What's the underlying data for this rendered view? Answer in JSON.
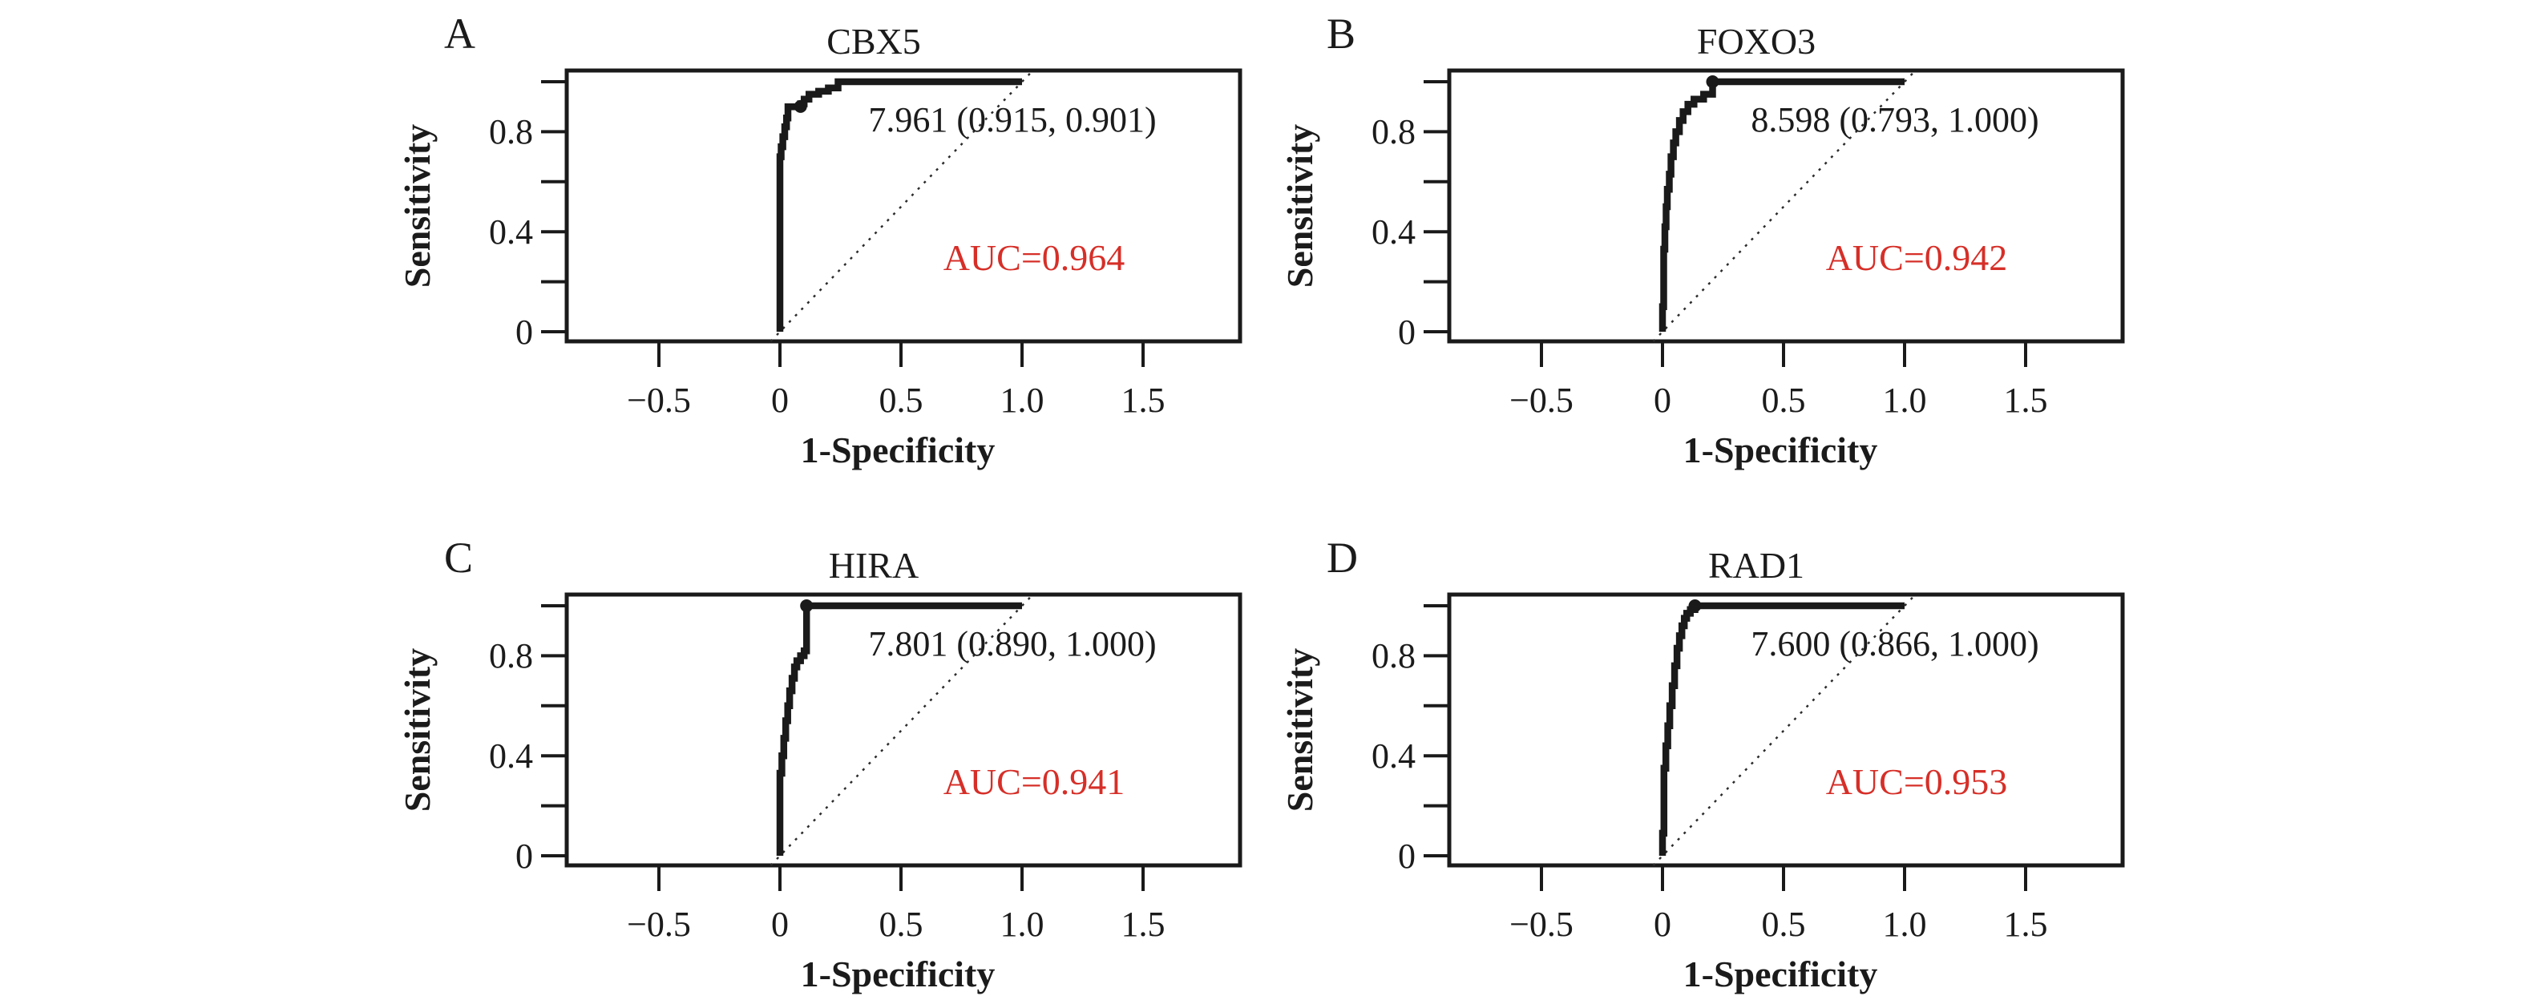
{
  "figure": {
    "background": "#ffffff",
    "ink_color": "#1a1a1a",
    "accent_red": "#d62f28"
  },
  "axes": {
    "x_label": "1-Specificity",
    "y_label": "Sensitivity",
    "x_tick_labels": [
      "−0.5",
      "0",
      "0.5",
      "1.0",
      "1.5"
    ],
    "y_tick_labels": [
      "0",
      "0.4",
      "0.8"
    ]
  },
  "panels": [
    {
      "letter": "A",
      "title": "CBX5",
      "threshold_label": "7.961 (0.915, 0.901)",
      "auc_label": "AUC=0.964"
    },
    {
      "letter": "B",
      "title": "FOXO3",
      "threshold_label": "8.598 (0.793, 1.000)",
      "auc_label": "AUC=0.942"
    },
    {
      "letter": "C",
      "title": "HIRA",
      "threshold_label": "7.801 (0.890, 1.000)",
      "auc_label": "AUC=0.941"
    },
    {
      "letter": "D",
      "title": "RAD1",
      "threshold_label": "7.600 (0.866, 1.000)",
      "auc_label": "AUC=0.953"
    }
  ],
  "chart_data": {
    "type": "line",
    "subtype": "roc-curve",
    "title": "ROC curves for candidate genes",
    "xlabel": "1-Specificity",
    "ylabel": "Sensitivity",
    "x_ticks": [
      -0.5,
      0,
      0.5,
      1.0,
      1.5
    ],
    "y_ticks_labeled": [
      0,
      0.4,
      0.8
    ],
    "y_ticks_minor": [
      0.2,
      0.6,
      1.0
    ],
    "xlim": [
      -0.88,
      1.9
    ],
    "ylim": [
      -0.04,
      1.045
    ],
    "grid": false,
    "legend": "none",
    "reference_line": {
      "from": [
        0,
        0
      ],
      "to": [
        1,
        1
      ],
      "style": "dotted",
      "extended_to_plot_edges": true
    },
    "panels": [
      {
        "label": "A",
        "gene": "CBX5",
        "auc": 0.964,
        "best_threshold": 7.961,
        "specificity": 0.915,
        "sensitivity": 0.901,
        "roc_curve": [
          [
            0,
            0
          ],
          [
            0,
            0.7
          ],
          [
            0.005,
            0.7
          ],
          [
            0.005,
            0.74
          ],
          [
            0.012,
            0.74
          ],
          [
            0.012,
            0.78
          ],
          [
            0.02,
            0.78
          ],
          [
            0.02,
            0.82
          ],
          [
            0.027,
            0.82
          ],
          [
            0.027,
            0.855
          ],
          [
            0.033,
            0.855
          ],
          [
            0.033,
            0.9
          ],
          [
            0.085,
            0.9
          ],
          [
            0.085,
            0.912
          ],
          [
            0.1,
            0.912
          ],
          [
            0.1,
            0.93
          ],
          [
            0.12,
            0.93
          ],
          [
            0.12,
            0.95
          ],
          [
            0.16,
            0.95
          ],
          [
            0.16,
            0.962
          ],
          [
            0.2,
            0.962
          ],
          [
            0.2,
            0.975
          ],
          [
            0.24,
            0.975
          ],
          [
            0.24,
            1.0
          ],
          [
            1.0,
            1.0
          ]
        ]
      },
      {
        "label": "B",
        "gene": "FOXO3",
        "auc": 0.942,
        "best_threshold": 8.598,
        "specificity": 0.793,
        "sensitivity": 1.0,
        "roc_curve": [
          [
            0,
            0
          ],
          [
            0,
            0.1
          ],
          [
            0.005,
            0.1
          ],
          [
            0.005,
            0.33
          ],
          [
            0.01,
            0.33
          ],
          [
            0.01,
            0.42
          ],
          [
            0.015,
            0.42
          ],
          [
            0.015,
            0.5
          ],
          [
            0.02,
            0.5
          ],
          [
            0.02,
            0.57
          ],
          [
            0.028,
            0.57
          ],
          [
            0.028,
            0.63
          ],
          [
            0.035,
            0.63
          ],
          [
            0.035,
            0.7
          ],
          [
            0.045,
            0.7
          ],
          [
            0.045,
            0.755
          ],
          [
            0.055,
            0.755
          ],
          [
            0.055,
            0.8
          ],
          [
            0.07,
            0.8
          ],
          [
            0.07,
            0.845
          ],
          [
            0.085,
            0.845
          ],
          [
            0.085,
            0.88
          ],
          [
            0.105,
            0.88
          ],
          [
            0.105,
            0.91
          ],
          [
            0.13,
            0.91
          ],
          [
            0.13,
            0.93
          ],
          [
            0.17,
            0.93
          ],
          [
            0.17,
            0.95
          ],
          [
            0.207,
            0.95
          ],
          [
            0.207,
            1.0
          ],
          [
            1.0,
            1.0
          ]
        ]
      },
      {
        "label": "C",
        "gene": "HIRA",
        "auc": 0.941,
        "best_threshold": 7.801,
        "specificity": 0.89,
        "sensitivity": 1.0,
        "roc_curve": [
          [
            0,
            0
          ],
          [
            0,
            0.33
          ],
          [
            0.008,
            0.33
          ],
          [
            0.008,
            0.4
          ],
          [
            0.016,
            0.4
          ],
          [
            0.016,
            0.47
          ],
          [
            0.024,
            0.47
          ],
          [
            0.024,
            0.54
          ],
          [
            0.032,
            0.54
          ],
          [
            0.032,
            0.6
          ],
          [
            0.04,
            0.6
          ],
          [
            0.04,
            0.66
          ],
          [
            0.05,
            0.66
          ],
          [
            0.05,
            0.71
          ],
          [
            0.06,
            0.71
          ],
          [
            0.06,
            0.755
          ],
          [
            0.07,
            0.755
          ],
          [
            0.07,
            0.78
          ],
          [
            0.085,
            0.78
          ],
          [
            0.085,
            0.8
          ],
          [
            0.1,
            0.8
          ],
          [
            0.1,
            0.82
          ],
          [
            0.11,
            0.82
          ],
          [
            0.11,
            1.0
          ],
          [
            1.0,
            1.0
          ]
        ]
      },
      {
        "label": "D",
        "gene": "RAD1",
        "auc": 0.953,
        "best_threshold": 7.6,
        "specificity": 0.866,
        "sensitivity": 1.0,
        "roc_curve": [
          [
            0,
            0
          ],
          [
            0,
            0.09
          ],
          [
            0.006,
            0.09
          ],
          [
            0.006,
            0.35
          ],
          [
            0.014,
            0.35
          ],
          [
            0.014,
            0.44
          ],
          [
            0.022,
            0.44
          ],
          [
            0.022,
            0.52
          ],
          [
            0.03,
            0.52
          ],
          [
            0.03,
            0.6
          ],
          [
            0.04,
            0.6
          ],
          [
            0.04,
            0.68
          ],
          [
            0.05,
            0.68
          ],
          [
            0.05,
            0.76
          ],
          [
            0.06,
            0.76
          ],
          [
            0.06,
            0.83
          ],
          [
            0.07,
            0.83
          ],
          [
            0.07,
            0.88
          ],
          [
            0.08,
            0.88
          ],
          [
            0.08,
            0.92
          ],
          [
            0.09,
            0.92
          ],
          [
            0.09,
            0.95
          ],
          [
            0.1,
            0.95
          ],
          [
            0.1,
            0.97
          ],
          [
            0.115,
            0.97
          ],
          [
            0.115,
            0.985
          ],
          [
            0.134,
            0.985
          ],
          [
            0.134,
            1.0
          ],
          [
            1.0,
            1.0
          ]
        ]
      }
    ]
  }
}
